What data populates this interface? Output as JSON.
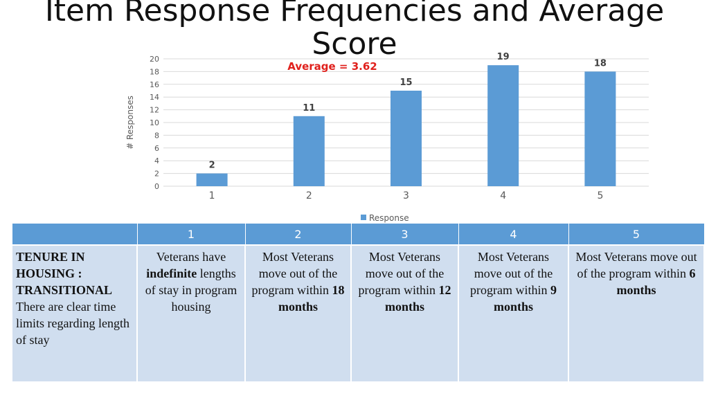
{
  "title": "Item Response Frequencies and Average Score",
  "chart_data": {
    "type": "bar",
    "title": "",
    "xlabel": "",
    "ylabel": "#  Responses",
    "ylim": [
      0,
      20
    ],
    "yticks": [
      0,
      2,
      4,
      6,
      8,
      10,
      12,
      14,
      16,
      18,
      20
    ],
    "categories": [
      "1",
      "2",
      "3",
      "4",
      "5"
    ],
    "series": [
      {
        "name": "Response",
        "values": [
          2,
          11,
          15,
          19,
          18
        ]
      }
    ],
    "annotation": "Average = 3.62",
    "legend_position": "bottom",
    "grid": true,
    "colors": {
      "bar": "#5b9bd5",
      "annotation": "#e0201c",
      "grid": "#d9d9d9"
    }
  },
  "table": {
    "headers": [
      "",
      "1",
      "2",
      "3",
      "4",
      "5"
    ],
    "row": {
      "label": {
        "bold": "TENURE IN HOUSING : TRANSITIONAL",
        "text": "There are clear time limits regarding length of stay"
      },
      "cells": [
        {
          "pre": "Veterans have ",
          "bold": "indefinite",
          "post": " lengths of stay in program housing"
        },
        {
          "pre": "Most Veterans move out of the program within ",
          "bold": "18 months",
          "post": ""
        },
        {
          "pre": "Most Veterans move out of the program within ",
          "bold": "12 months",
          "post": ""
        },
        {
          "pre": "Most Veterans move out of the program within ",
          "bold": "9 months",
          "post": ""
        },
        {
          "pre": "Most Veterans move out of the program within ",
          "bold": "6 months",
          "post": ""
        }
      ]
    }
  }
}
